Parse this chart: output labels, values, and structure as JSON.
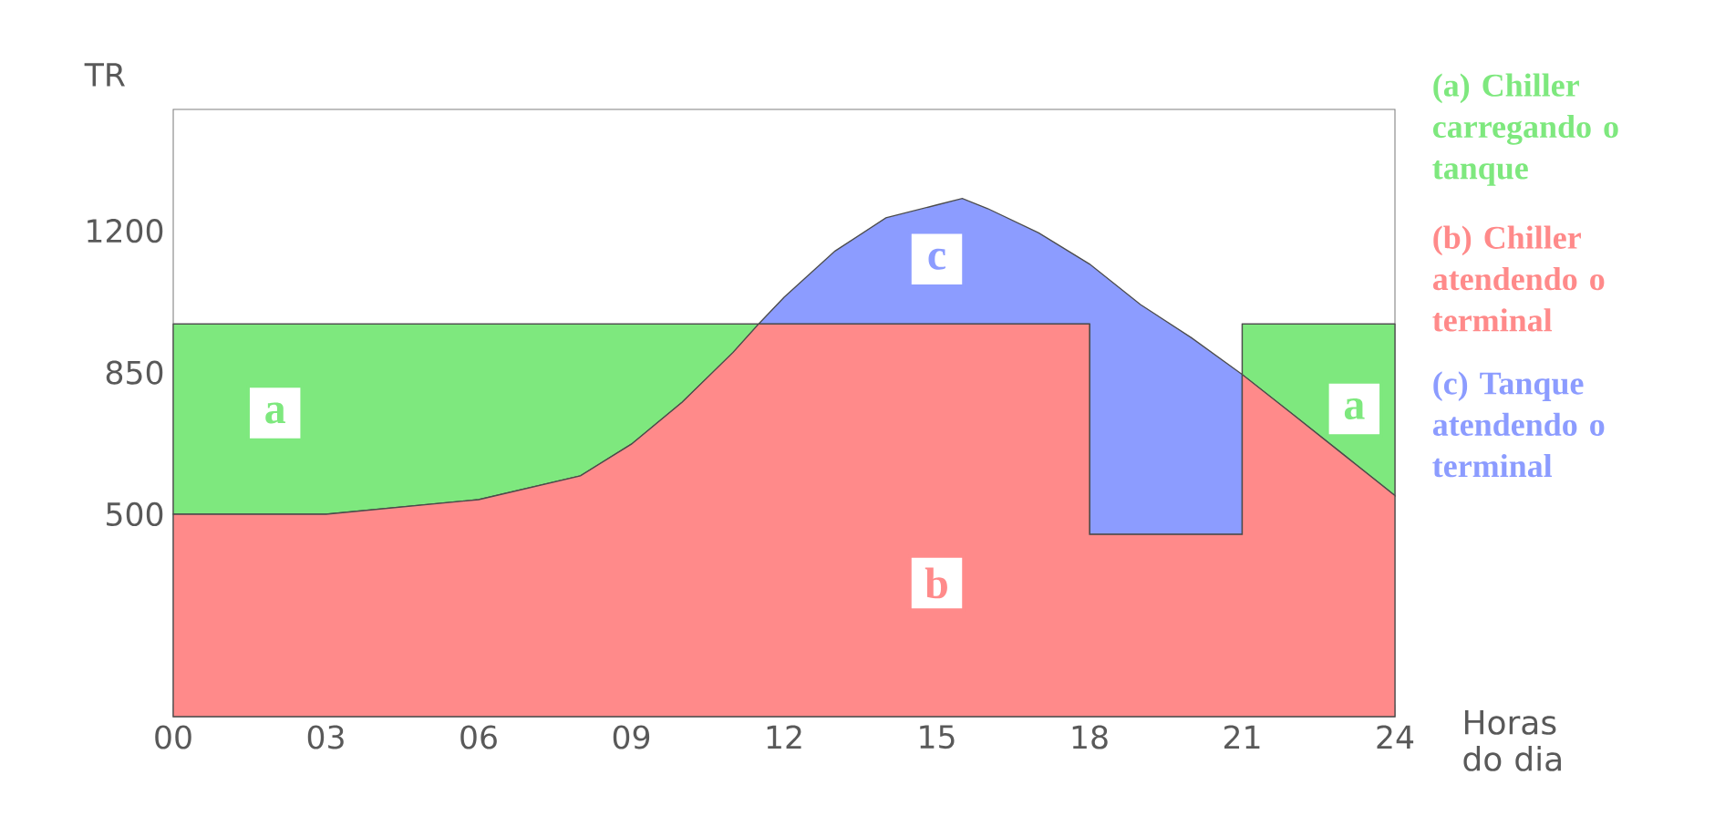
{
  "chart_data": {
    "type": "area",
    "stacked": true,
    "x": [
      0,
      3,
      6,
      8,
      9,
      10,
      11,
      11.5,
      12,
      13,
      14,
      15,
      15.5,
      16,
      17,
      18,
      18,
      19,
      20,
      21,
      21,
      22,
      23,
      24
    ],
    "series": [
      {
        "name": "(b) Chiller atendendo o terminal",
        "color": "#ff8a8a",
        "values": [
          500,
          500,
          536,
          595,
          673,
          777,
          900,
          970,
          970,
          970,
          970,
          970,
          970,
          970,
          970,
          970,
          450,
          450,
          450,
          450,
          845,
          746,
          646,
          546
        ]
      },
      {
        "name": "(a) Chiller carregando o tanque",
        "color": "#7ee87e",
        "values": [
          470,
          470,
          434,
          375,
          297,
          193,
          70,
          0,
          0,
          0,
          0,
          0,
          0,
          0,
          0,
          0,
          0,
          0,
          0,
          0,
          125,
          224,
          324,
          424
        ]
      },
      {
        "name": "(c) Tanque atendendo o terminal",
        "color": "#8c9cff",
        "values": [
          0,
          0,
          0,
          0,
          0,
          0,
          0,
          0,
          66,
          180,
          262,
          294,
          310,
          285,
          225,
          148,
          668,
          568,
          486,
          395,
          0,
          0,
          0,
          0
        ]
      }
    ],
    "ylabel": "TR",
    "xlabel": "Horas do dia",
    "xlim": [
      0,
      24
    ],
    "ylim": [
      0,
      1500
    ],
    "xticks": [
      {
        "value": 0,
        "label": "00"
      },
      {
        "value": 3,
        "label": "03"
      },
      {
        "value": 6,
        "label": "06"
      },
      {
        "value": 9,
        "label": "09"
      },
      12,
      15,
      18,
      21,
      24
    ],
    "yticks": [
      500,
      850,
      1200
    ],
    "annotations": [
      {
        "text": "a",
        "x": 2,
        "y": 750
      },
      {
        "text": "b",
        "x": 15,
        "y": 330
      },
      {
        "text": "c",
        "x": 15,
        "y": 1130
      },
      {
        "text": "a",
        "x": 23.2,
        "y": 760
      }
    ],
    "legend": "right",
    "grid": false
  }
}
